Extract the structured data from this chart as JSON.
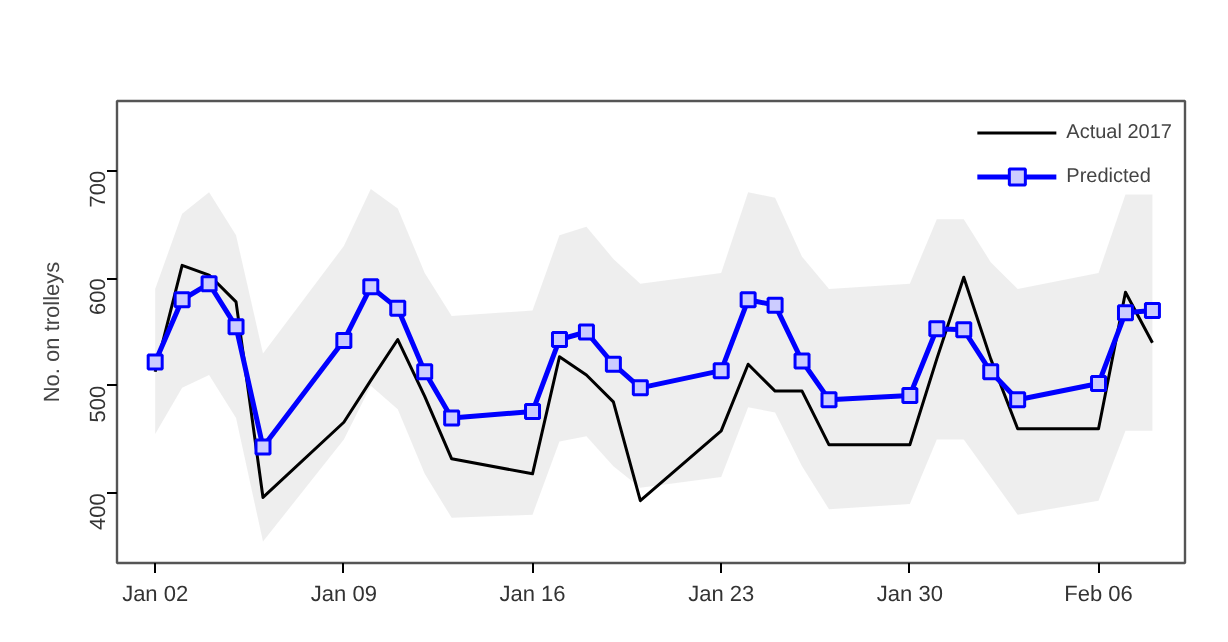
{
  "chart_data": {
    "type": "line",
    "ylabel": "No. on trolleys",
    "x": [
      "2017-01-02",
      "2017-01-03",
      "2017-01-04",
      "2017-01-05",
      "2017-01-06",
      "2017-01-09",
      "2017-01-10",
      "2017-01-11",
      "2017-01-12",
      "2017-01-13",
      "2017-01-16",
      "2017-01-17",
      "2017-01-18",
      "2017-01-19",
      "2017-01-20",
      "2017-01-23",
      "2017-01-24",
      "2017-01-25",
      "2017-01-26",
      "2017-01-27",
      "2017-01-30",
      "2017-01-31",
      "2017-02-01",
      "2017-02-02",
      "2017-02-03",
      "2017-02-06",
      "2017-02-07",
      "2017-02-08"
    ],
    "series": [
      {
        "name": "Actual 2017",
        "color": "#000000",
        "marker": "none",
        "values": [
          513,
          612,
          603,
          578,
          396,
          466,
          505,
          543,
          490,
          432,
          418,
          527,
          510,
          485,
          393,
          458,
          520,
          495,
          495,
          445,
          445,
          525,
          601,
          525,
          460,
          460,
          587,
          540
        ]
      },
      {
        "name": "Predicted",
        "color": "#0000ff",
        "marker": "square",
        "values": [
          522,
          580,
          595,
          555,
          443,
          542,
          592,
          572,
          513,
          470,
          476,
          543,
          550,
          520,
          498,
          514,
          580,
          575,
          523,
          487,
          491,
          553,
          552,
          513,
          487,
          502,
          568,
          570
        ],
        "lower": [
          455,
          498,
          510,
          470,
          355,
          450,
          500,
          478,
          418,
          377,
          380,
          448,
          453,
          425,
          405,
          415,
          480,
          475,
          425,
          385,
          390,
          450,
          450,
          415,
          380,
          393,
          458,
          458
        ],
        "upper": [
          590,
          660,
          680,
          640,
          530,
          630,
          683,
          665,
          605,
          565,
          570,
          640,
          648,
          618,
          595,
          605,
          680,
          675,
          620,
          590,
          595,
          655,
          655,
          615,
          590,
          605,
          678,
          678
        ]
      }
    ],
    "xlim": [
      "2016-12-31T14:00",
      "2017-02-09T05:00"
    ],
    "xticks": [
      {
        "value": "2017-01-02",
        "label": "Jan 02"
      },
      {
        "value": "2017-01-09",
        "label": "Jan 09"
      },
      {
        "value": "2017-01-16",
        "label": "Jan 16"
      },
      {
        "value": "2017-01-23",
        "label": "Jan 23"
      },
      {
        "value": "2017-01-30",
        "label": "Jan 30"
      },
      {
        "value": "2017-02-06",
        "label": "Feb 06"
      }
    ],
    "ylim": [
      335,
      765
    ],
    "yticks": [
      400,
      500,
      600,
      700
    ],
    "grid": false,
    "legend": "top right",
    "line_style": "solid"
  }
}
